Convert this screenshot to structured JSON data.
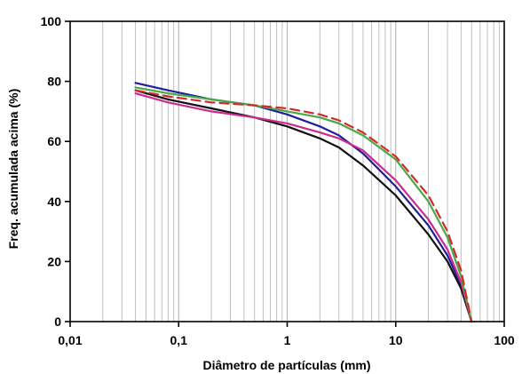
{
  "chart_data": {
    "type": "line",
    "xlabel": "Diâmetro de partículas (mm)",
    "ylabel": "Freq. acumulada acima (%)",
    "xscale": "log",
    "xlim": [
      0.01,
      100
    ],
    "ylim": [
      0,
      100
    ],
    "xticks": [
      0.01,
      0.1,
      1,
      10,
      100
    ],
    "xtick_labels": [
      "0,01",
      "0,1",
      "1",
      "10",
      "100"
    ],
    "yticks": [
      0,
      20,
      40,
      60,
      80,
      100
    ],
    "ytick_labels": [
      "0",
      "20",
      "40",
      "60",
      "80",
      "100"
    ],
    "grid": "vertical minor log gridlines",
    "legend": "none",
    "series": [
      {
        "color": "#1f1f9e",
        "style": "solid",
        "x": [
          0.04,
          0.08,
          0.2,
          0.5,
          1,
          2,
          3,
          5,
          10,
          20,
          30,
          40,
          50
        ],
        "y": [
          79.5,
          77,
          74,
          72,
          69,
          65,
          62,
          56,
          45,
          32,
          22,
          12,
          0
        ]
      },
      {
        "color": "#111111",
        "style": "solid",
        "x": [
          0.04,
          0.08,
          0.2,
          0.5,
          1,
          2,
          3,
          5,
          10,
          20,
          30,
          40,
          50
        ],
        "y": [
          77,
          74,
          71,
          68,
          65,
          61,
          58,
          52,
          42,
          29,
          20,
          11,
          0
        ]
      },
      {
        "color": "#cc2a8e",
        "style": "solid",
        "x": [
          0.04,
          0.08,
          0.2,
          0.5,
          1,
          2,
          3,
          5,
          10,
          20,
          30,
          40,
          50
        ],
        "y": [
          76,
          73,
          70,
          68,
          66,
          63,
          61,
          57,
          47,
          34,
          24,
          13,
          0
        ]
      },
      {
        "color": "#4aa84a",
        "style": "solid",
        "x": [
          0.04,
          0.08,
          0.2,
          0.5,
          1,
          2,
          3,
          5,
          10,
          20,
          30,
          40,
          50
        ],
        "y": [
          78,
          76,
          74,
          72,
          70,
          68,
          66,
          62,
          54,
          40,
          28,
          15,
          0
        ]
      },
      {
        "color": "#d22a2a",
        "style": "dashed",
        "x": [
          0.04,
          0.08,
          0.2,
          0.5,
          1,
          2,
          3,
          5,
          10,
          20,
          30,
          40,
          50
        ],
        "y": [
          77,
          75,
          73,
          72,
          71,
          69,
          67,
          63,
          55,
          42,
          30,
          17,
          0
        ]
      }
    ]
  },
  "colors": {
    "axis": "#000000",
    "grid": "#b9b9b9",
    "background": "#ffffff"
  }
}
